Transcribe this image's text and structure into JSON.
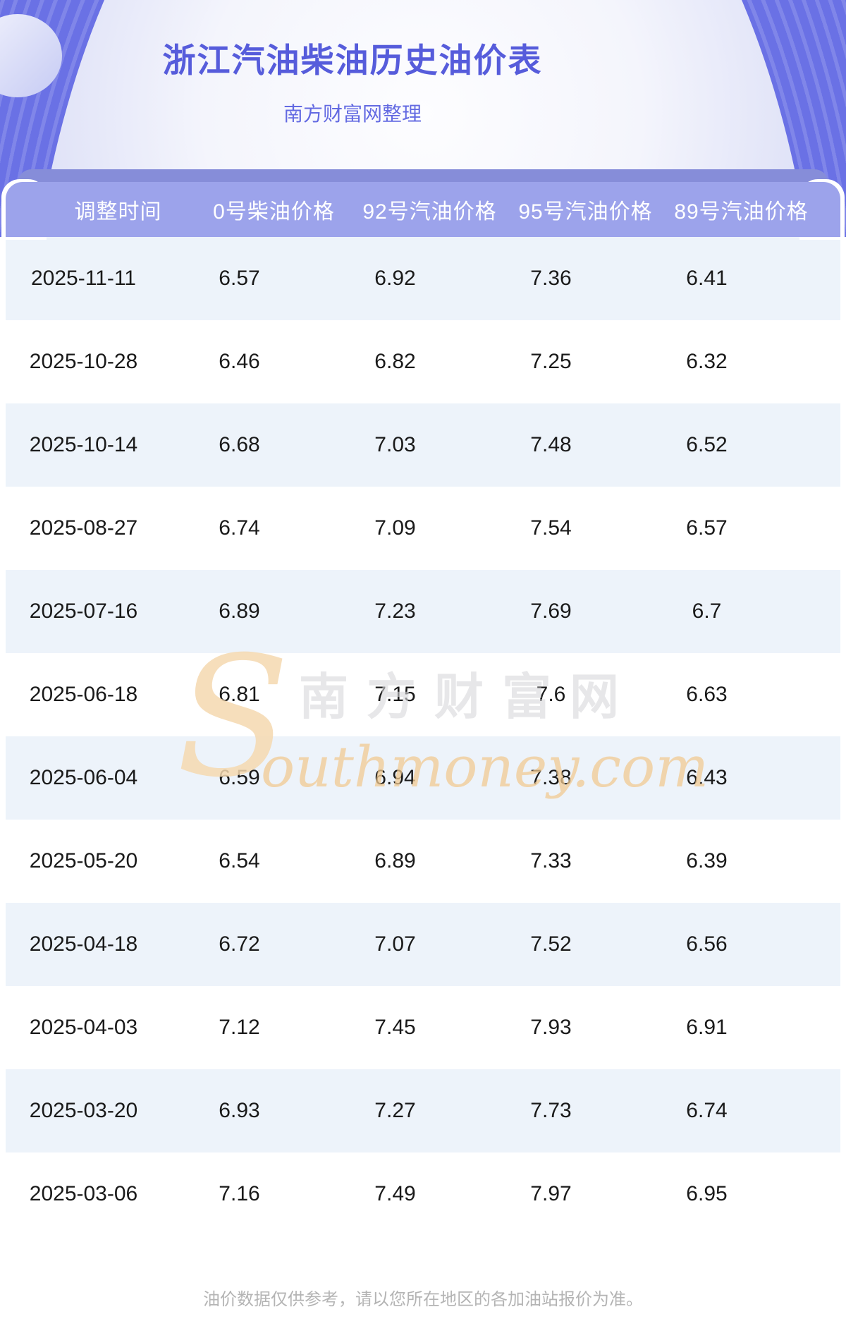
{
  "hero": {
    "title": "浙江汽油柴油历史油价表",
    "subtitle": "南方财富网整理"
  },
  "table": {
    "columns": [
      "调整时间",
      "0号柴油价格",
      "92号汽油价格",
      "95号汽油价格",
      "89号汽油价格"
    ],
    "rows": [
      [
        "2025-11-11",
        "6.57",
        "6.92",
        "7.36",
        "6.41"
      ],
      [
        "2025-10-28",
        "6.46",
        "6.82",
        "7.25",
        "6.32"
      ],
      [
        "2025-10-14",
        "6.68",
        "7.03",
        "7.48",
        "6.52"
      ],
      [
        "2025-08-27",
        "6.74",
        "7.09",
        "7.54",
        "6.57"
      ],
      [
        "2025-07-16",
        "6.89",
        "7.23",
        "7.69",
        "6.7"
      ],
      [
        "2025-06-18",
        "6.81",
        "7.15",
        "7.6",
        "6.63"
      ],
      [
        "2025-06-04",
        "6.59",
        "6.94",
        "7.38",
        "6.43"
      ],
      [
        "2025-05-20",
        "6.54",
        "6.89",
        "7.33",
        "6.39"
      ],
      [
        "2025-04-18",
        "6.72",
        "7.07",
        "7.52",
        "6.56"
      ],
      [
        "2025-04-03",
        "7.12",
        "7.45",
        "7.93",
        "6.91"
      ],
      [
        "2025-03-20",
        "6.93",
        "7.27",
        "7.73",
        "6.74"
      ],
      [
        "2025-03-06",
        "7.16",
        "7.49",
        "7.97",
        "6.95"
      ]
    ]
  },
  "watermark": {
    "s": "S",
    "cn": "南方财富网",
    "en": "outhmoney.com"
  },
  "footer": {
    "disclaimer": "油价数据仅供参考，请以您所在地区的各加油站报价为准。"
  },
  "colors": {
    "hero_background": "#6a71e5",
    "hero_ring": "#7e84ec",
    "title_text": "#565cdb",
    "subtitle_text": "#636ae2",
    "back_bar": "#868dd9",
    "header_bar": "#9ca3eb",
    "header_text": "#ffffff",
    "row_alt_background": "#edf3fa",
    "row_text": "#1a1a1a",
    "watermark_orange": "#f0ca92",
    "watermark_gray": "#d7d7da",
    "footer_text": "#b4b4b4"
  }
}
